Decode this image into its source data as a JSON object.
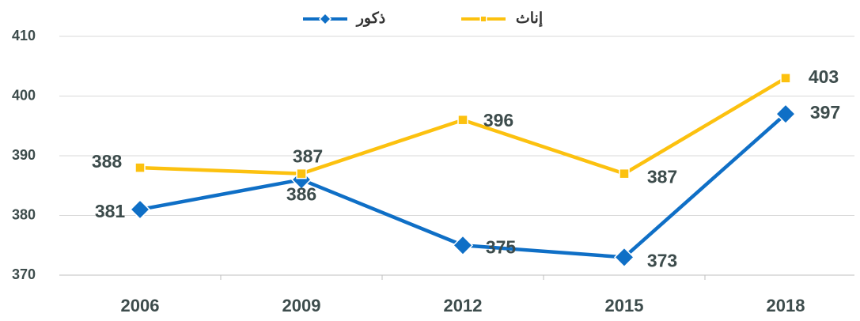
{
  "chart_data": {
    "type": "line",
    "categories": [
      "2006",
      "2009",
      "2012",
      "2015",
      "2018"
    ],
    "series": [
      {
        "name": "ذكور",
        "color": "#0f6fc6",
        "marker": "diamond",
        "values": [
          381,
          386,
          375,
          373,
          397
        ]
      },
      {
        "name": "إناث",
        "color": "#fcc10f",
        "marker": "square",
        "values": [
          388,
          387,
          396,
          387,
          403
        ]
      }
    ],
    "ylim": [
      370,
      410
    ],
    "yticks": [
      370,
      380,
      390,
      400,
      410
    ],
    "grid": true,
    "legend": "top"
  }
}
